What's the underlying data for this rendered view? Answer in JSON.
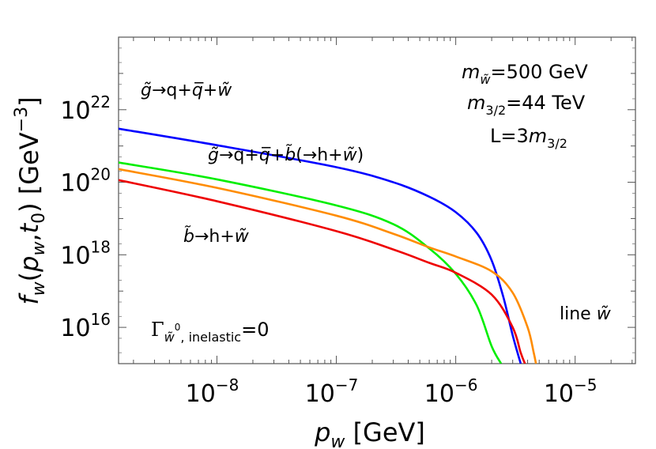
{
  "chart_data": {
    "type": "line",
    "xlabel": {
      "var": "p",
      "sub": "w",
      "unit": "[GeV]"
    },
    "ylabel": {
      "func": "f",
      "sub": "w",
      "args": [
        "p",
        "w",
        "t",
        "0"
      ],
      "unit": "[GeV",
      "unit_exp": "−3",
      "unit_close": "]"
    },
    "x_scale": "log",
    "y_scale": "log",
    "xlim": [
      1.5e-09,
      3.2e-05
    ],
    "ylim": [
      1000000000000000.0,
      1e+24
    ],
    "x_ticks": [
      {
        "base": "10",
        "exp": "−8",
        "value": 1e-08
      },
      {
        "base": "10",
        "exp": "−7",
        "value": 1e-07
      },
      {
        "base": "10",
        "exp": "−6",
        "value": 1e-06
      },
      {
        "base": "10",
        "exp": "−5",
        "value": 1e-05
      }
    ],
    "y_ticks": [
      {
        "base": "10",
        "exp": "16",
        "value": 1e+16
      },
      {
        "base": "10",
        "exp": "18",
        "value": 1e+18
      },
      {
        "base": "10",
        "exp": "20",
        "value": 1e+20
      },
      {
        "base": "10",
        "exp": "22",
        "value": 1e+22
      }
    ],
    "grid": false,
    "series": [
      {
        "color": "#0000ff",
        "points": [
          [
            1.5e-09,
            3e+21
          ],
          [
            1e-08,
            1.05e+21
          ],
          [
            1e-07,
            2.6e+20
          ],
          [
            3e-07,
            1e+20
          ],
          [
            6e-07,
            4e+19
          ],
          [
            1e-06,
            1.5e+19
          ],
          [
            1.5e-06,
            4e+18
          ],
          [
            2e-06,
            7e+17
          ],
          [
            2.5e-06,
            7e+16
          ],
          [
            3e-06,
            6000000000000000.0
          ],
          [
            3.5e-06,
            1000000000000000.0
          ]
        ]
      },
      {
        "color": "#00ee00",
        "points": [
          [
            1.5e-09,
            3.5e+20
          ],
          [
            1e-08,
            1.2e+20
          ],
          [
            1e-07,
            2.3e+19
          ],
          [
            3e-07,
            7e+18
          ],
          [
            6e-07,
            1.5e+18
          ],
          [
            1e-06,
            3e+17
          ],
          [
            1.5e-06,
            4e+16
          ],
          [
            2e-06,
            3000000000000000.0
          ],
          [
            2.4e-06,
            1000000000000000.0
          ]
        ]
      },
      {
        "color": "#ff8c00",
        "points": [
          [
            1.5e-09,
            2.3e+20
          ],
          [
            1e-08,
            7e+19
          ],
          [
            1e-07,
            1.2e+19
          ],
          [
            3e-07,
            3.8e+18
          ],
          [
            6e-07,
            1.6e+18
          ],
          [
            1e-06,
            9e+17
          ],
          [
            2e-06,
            3.5e+17
          ],
          [
            3e-06,
            9e+16
          ],
          [
            4e-06,
            1e+16
          ],
          [
            4.5e-06,
            2000000000000000.0
          ],
          [
            4.7e-06,
            1000000000000000.0
          ]
        ]
      },
      {
        "color": "#ee0000",
        "points": [
          [
            1.5e-09,
            1.15e+20
          ],
          [
            1e-08,
            3e+19
          ],
          [
            1e-07,
            4.5e+18
          ],
          [
            3e-07,
            1.4e+18
          ],
          [
            6e-07,
            6e+17
          ],
          [
            1e-06,
            3.2e+17
          ],
          [
            2e-06,
            8e+16
          ],
          [
            3e-06,
            1e+16
          ],
          [
            3.5e-06,
            2000000000000000.0
          ],
          [
            3.8e-06,
            1000000000000000.0
          ]
        ]
      }
    ],
    "annotations": {
      "blue_label": {
        "parts": [
          [
            "g̃",
            "it"
          ],
          [
            "→q+",
            "rm"
          ],
          [
            "q̅",
            "it"
          ],
          [
            "+",
            "rm"
          ],
          [
            "w̃",
            "it"
          ]
        ]
      },
      "green_label": {
        "parts": [
          [
            "g̃",
            "it"
          ],
          [
            "→q+",
            "rm"
          ],
          [
            "q̅",
            "it"
          ],
          [
            "+",
            "rm"
          ],
          [
            "b̃",
            "it"
          ],
          [
            "(→h+",
            "rm"
          ],
          [
            "w̃",
            "it"
          ],
          [
            ")",
            "rm"
          ]
        ]
      },
      "red_label": {
        "parts": [
          [
            "b̃",
            "it"
          ],
          [
            "→h+",
            "rm"
          ],
          [
            "w̃",
            "it"
          ]
        ]
      },
      "params": [
        {
          "parts": [
            [
              "m",
              "it"
            ],
            [
              "w̃",
              "sub-it"
            ],
            [
              "=500 GeV",
              "rm"
            ]
          ]
        },
        {
          "parts": [
            [
              "m",
              "it"
            ],
            [
              "3/2",
              "sub"
            ],
            [
              "=44 TeV",
              "rm"
            ]
          ]
        },
        {
          "parts": [
            [
              "L=3",
              "rm"
            ],
            [
              "m",
              "it"
            ],
            [
              "3/2",
              "sub"
            ]
          ]
        }
      ],
      "line_label": {
        "parts": [
          [
            "line ",
            "rm"
          ],
          [
            "w̃",
            "it"
          ]
        ]
      },
      "gamma_label": {
        "parts": [
          [
            "Γ",
            "serif"
          ],
          [
            "w̃",
            "sub-it"
          ],
          [
            "0",
            "subsup"
          ],
          [
            ", inelastic",
            "sub"
          ],
          [
            "=0",
            "rm"
          ]
        ]
      }
    }
  }
}
